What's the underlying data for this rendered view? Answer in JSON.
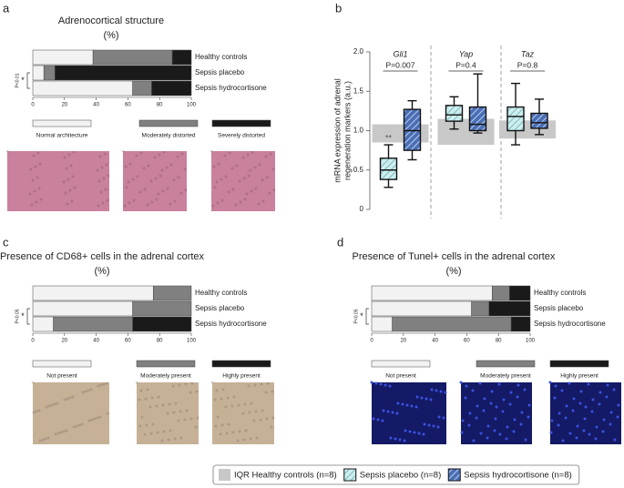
{
  "chart_data": [
    {
      "type": "stacked_bar",
      "panel": "a",
      "title": "Adrenocortical structure",
      "subtitle": "(%)",
      "categories": [
        "Healthy controls",
        "Sepsis placebo",
        "Sepsis hydrocortisone"
      ],
      "series": [
        {
          "name": "Normal architecture",
          "color": "#f2f2f2",
          "values": [
            38,
            7,
            63
          ]
        },
        {
          "name": "Moderately distorted",
          "color": "#808080",
          "values": [
            50,
            7,
            12
          ]
        },
        {
          "name": "Severely distorted",
          "color": "#1a1a1a",
          "values": [
            12,
            86,
            25
          ]
        }
      ],
      "xlim": [
        0,
        100
      ],
      "xticks": [
        0,
        20,
        40,
        60,
        80,
        100
      ],
      "annotations": [
        "*",
        "P<0.01"
      ]
    },
    {
      "type": "box",
      "panel": "b",
      "ylabel": [
        "mRNA expression of adrenal",
        "regeneration markers (a.u.)"
      ],
      "categories": [
        "Gli1",
        "Yap",
        "Taz"
      ],
      "pvalues": [
        "P=0.007",
        "P=0.4",
        "P=0.8"
      ],
      "annotations": [
        "**"
      ],
      "ylim": [
        0,
        2
      ],
      "yticks": [
        0,
        0.5,
        {
          "value": 1,
          "label": "1.0"
        },
        1.5,
        {
          "value": 2,
          "label": "2.0"
        }
      ],
      "series": [
        {
          "name": "IQR Healthy controls (n=8)",
          "color": "#c8c8c8",
          "low": [
            0.85,
            0.82,
            0.9
          ],
          "high": [
            1.08,
            1.15,
            1.13
          ]
        },
        {
          "name": "Sepsis placebo (n=8)",
          "color": "#cdeef0",
          "min": [
            0.28,
            1.02,
            0.82
          ],
          "q1": [
            0.38,
            1.12,
            1.0
          ],
          "median": [
            0.5,
            1.2,
            1.18
          ],
          "q3": [
            0.65,
            1.32,
            1.3
          ],
          "max": [
            0.82,
            1.43,
            1.6
          ]
        },
        {
          "name": "Sepsis hydrocortisone (n=8)",
          "color": "#4a6fb5",
          "min": [
            0.63,
            0.97,
            0.95
          ],
          "q1": [
            0.75,
            1.0,
            1.03
          ],
          "median": [
            1.0,
            1.08,
            1.1
          ],
          "q3": [
            1.27,
            1.3,
            1.22
          ],
          "max": [
            1.38,
            1.72,
            1.4
          ]
        }
      ]
    },
    {
      "type": "stacked_bar",
      "panel": "c",
      "title": "Presence of CD68+ cells in the adrenal cortex",
      "subtitle": "(%)",
      "categories": [
        "Healthy controls",
        "Sepsis placebo",
        "Sepsis hydrocortisone"
      ],
      "series": [
        {
          "name": "Not present",
          "color": "#f2f2f2",
          "values": [
            76,
            63,
            13
          ]
        },
        {
          "name": "Moderately present",
          "color": "#808080",
          "values": [
            24,
            37,
            50
          ]
        },
        {
          "name": "Highly present",
          "color": "#1a1a1a",
          "values": [
            0,
            0,
            37
          ]
        }
      ],
      "xlim": [
        0,
        100
      ],
      "xticks": [
        0,
        20,
        40,
        60,
        80,
        100
      ],
      "annotations": [
        "*",
        "P<0.05"
      ]
    },
    {
      "type": "stacked_bar",
      "panel": "d",
      "title": "Presence of Tunel+ cells in the adrenal cortex",
      "subtitle": "(%)",
      "categories": [
        "Healthy controls",
        "Sepsis placebo",
        "Sepsis hydrocortisone"
      ],
      "series": [
        {
          "name": "Not present",
          "color": "#f2f2f2",
          "values": [
            76,
            63,
            13
          ]
        },
        {
          "name": "Moderately present",
          "color": "#808080",
          "values": [
            11,
            11,
            75
          ]
        },
        {
          "name": "Highly present",
          "color": "#1a1a1a",
          "values": [
            13,
            26,
            12
          ]
        }
      ],
      "xlim": [
        0,
        100
      ],
      "xticks": [
        0,
        20,
        40,
        60,
        80,
        100
      ],
      "annotations": [
        "*",
        "P<0.05"
      ]
    }
  ]
}
